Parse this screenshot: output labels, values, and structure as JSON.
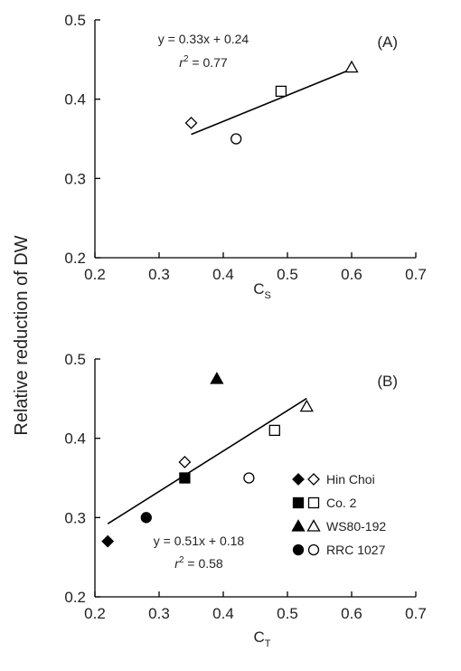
{
  "ylabel": "Relative reduction of DW",
  "legend": [
    {
      "label": "Hin Choi",
      "marker": "diamond"
    },
    {
      "label": "Co. 2",
      "marker": "square"
    },
    {
      "label": "WS80-192",
      "marker": "triangle"
    },
    {
      "label": "RRC 1027",
      "marker": "circle"
    }
  ],
  "chart_data": [
    {
      "type": "scatter",
      "panel_letter": "(A)",
      "xlabel_main": "C",
      "xlabel_sub": "S",
      "xlim": [
        0.2,
        0.7
      ],
      "ylim": [
        0.2,
        0.5
      ],
      "xticks": [
        "0.2",
        "0.3",
        "0.4",
        "0.5",
        "0.6",
        "0.7"
      ],
      "yticks": [
        "0.2",
        "0.3",
        "0.4",
        "0.5"
      ],
      "equation": "y = 0.33x + 0.24",
      "r2_prefix": "r",
      "r2_value": "= 0.77",
      "fit": {
        "x": [
          0.35,
          0.6
        ]
      },
      "series": [
        {
          "name": "Hin Choi",
          "marker": "diamond",
          "filled": false,
          "points": [
            [
              0.35,
              0.37
            ]
          ]
        },
        {
          "name": "Co. 2",
          "marker": "square",
          "filled": false,
          "points": [
            [
              0.49,
              0.41
            ]
          ]
        },
        {
          "name": "WS80-192",
          "marker": "triangle",
          "filled": false,
          "points": [
            [
              0.6,
              0.44
            ]
          ]
        },
        {
          "name": "RRC 1027",
          "marker": "circle",
          "filled": false,
          "points": [
            [
              0.42,
              0.35
            ]
          ]
        }
      ]
    },
    {
      "type": "scatter",
      "panel_letter": "(B)",
      "xlabel_main": "C",
      "xlabel_sub": "T",
      "xlim": [
        0.2,
        0.7
      ],
      "ylim": [
        0.2,
        0.5
      ],
      "xticks": [
        "0.2",
        "0.3",
        "0.4",
        "0.5",
        "0.6",
        "0.7"
      ],
      "yticks": [
        "0.2",
        "0.3",
        "0.4",
        "0.5"
      ],
      "equation": "y = 0.51x + 0.18",
      "r2_prefix": "r",
      "r2_value": "= 0.58",
      "fit": {
        "x": [
          0.22,
          0.53
        ]
      },
      "series": [
        {
          "name": "Hin Choi",
          "marker": "diamond",
          "filled": true,
          "points": [
            [
              0.22,
              0.27
            ]
          ]
        },
        {
          "name": "Hin Choi",
          "marker": "diamond",
          "filled": false,
          "points": [
            [
              0.34,
              0.37
            ]
          ]
        },
        {
          "name": "Co. 2",
          "marker": "square",
          "filled": true,
          "points": [
            [
              0.34,
              0.35
            ]
          ]
        },
        {
          "name": "Co. 2",
          "marker": "square",
          "filled": false,
          "points": [
            [
              0.48,
              0.41
            ]
          ]
        },
        {
          "name": "WS80-192",
          "marker": "triangle",
          "filled": true,
          "points": [
            [
              0.39,
              0.475
            ]
          ]
        },
        {
          "name": "WS80-192",
          "marker": "triangle",
          "filled": false,
          "points": [
            [
              0.53,
              0.44
            ]
          ]
        },
        {
          "name": "RRC 1027",
          "marker": "circle",
          "filled": true,
          "points": [
            [
              0.28,
              0.3
            ]
          ]
        },
        {
          "name": "RRC 1027",
          "marker": "circle",
          "filled": false,
          "points": [
            [
              0.44,
              0.35
            ]
          ]
        }
      ]
    }
  ]
}
